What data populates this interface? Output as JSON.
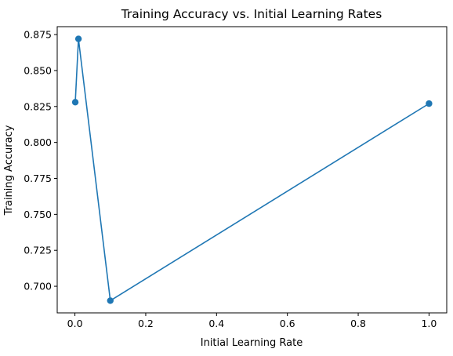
{
  "chart_data": {
    "type": "line",
    "title": "Training Accuracy vs. Initial Learning Rates",
    "xlabel": "Initial Learning Rate",
    "ylabel": "Training Accuracy",
    "xlim": [
      -0.05,
      1.05
    ],
    "ylim": [
      0.6815,
      0.8805
    ],
    "xticks": [
      0.0,
      0.2,
      0.4,
      0.6,
      0.8,
      1.0
    ],
    "xtick_labels": [
      "0.0",
      "0.2",
      "0.4",
      "0.6",
      "0.8",
      "1.0"
    ],
    "yticks": [
      0.7,
      0.725,
      0.75,
      0.775,
      0.8,
      0.825,
      0.85,
      0.875
    ],
    "ytick_labels": [
      "0.700",
      "0.725",
      "0.750",
      "0.775",
      "0.800",
      "0.825",
      "0.850",
      "0.875"
    ],
    "grid": false,
    "series": [
      {
        "color": "#1f77b4",
        "marker": "circle",
        "points": [
          {
            "x": 0.001,
            "y": 0.828
          },
          {
            "x": 0.01,
            "y": 0.872
          },
          {
            "x": 0.1,
            "y": 0.69
          },
          {
            "x": 1.0,
            "y": 0.827
          }
        ]
      }
    ]
  }
}
